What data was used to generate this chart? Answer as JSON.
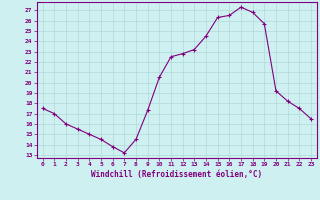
{
  "hours": [
    0,
    1,
    2,
    3,
    4,
    5,
    6,
    7,
    8,
    9,
    10,
    11,
    12,
    13,
    14,
    15,
    16,
    17,
    18,
    19,
    20,
    21,
    22,
    23
  ],
  "windchill": [
    17.5,
    17.0,
    16.0,
    15.5,
    15.0,
    14.5,
    13.8,
    13.2,
    14.5,
    17.3,
    20.5,
    22.5,
    22.8,
    23.2,
    24.5,
    26.3,
    26.5,
    27.3,
    26.8,
    25.7,
    19.2,
    18.2,
    17.5,
    16.5
  ],
  "line_color": "#800080",
  "marker": "+",
  "bg_color": "#cff0f0",
  "grid_color": "#b0d8d8",
  "title": "Windchill (Refroidissement éolien,°C)",
  "ylabel_values": [
    13,
    14,
    15,
    16,
    17,
    18,
    19,
    20,
    21,
    22,
    23,
    24,
    25,
    26,
    27
  ],
  "ylim": [
    12.7,
    27.8
  ],
  "xlim": [
    -0.5,
    23.5
  ],
  "xtick_labels": [
    "0",
    "1",
    "2",
    "3",
    "4",
    "5",
    "6",
    "7",
    "8",
    "9",
    "10",
    "11",
    "12",
    "13",
    "14",
    "15",
    "16",
    "17",
    "18",
    "19",
    "20",
    "21",
    "22",
    "23"
  ],
  "figsize": [
    3.2,
    2.0
  ],
  "dpi": 100
}
